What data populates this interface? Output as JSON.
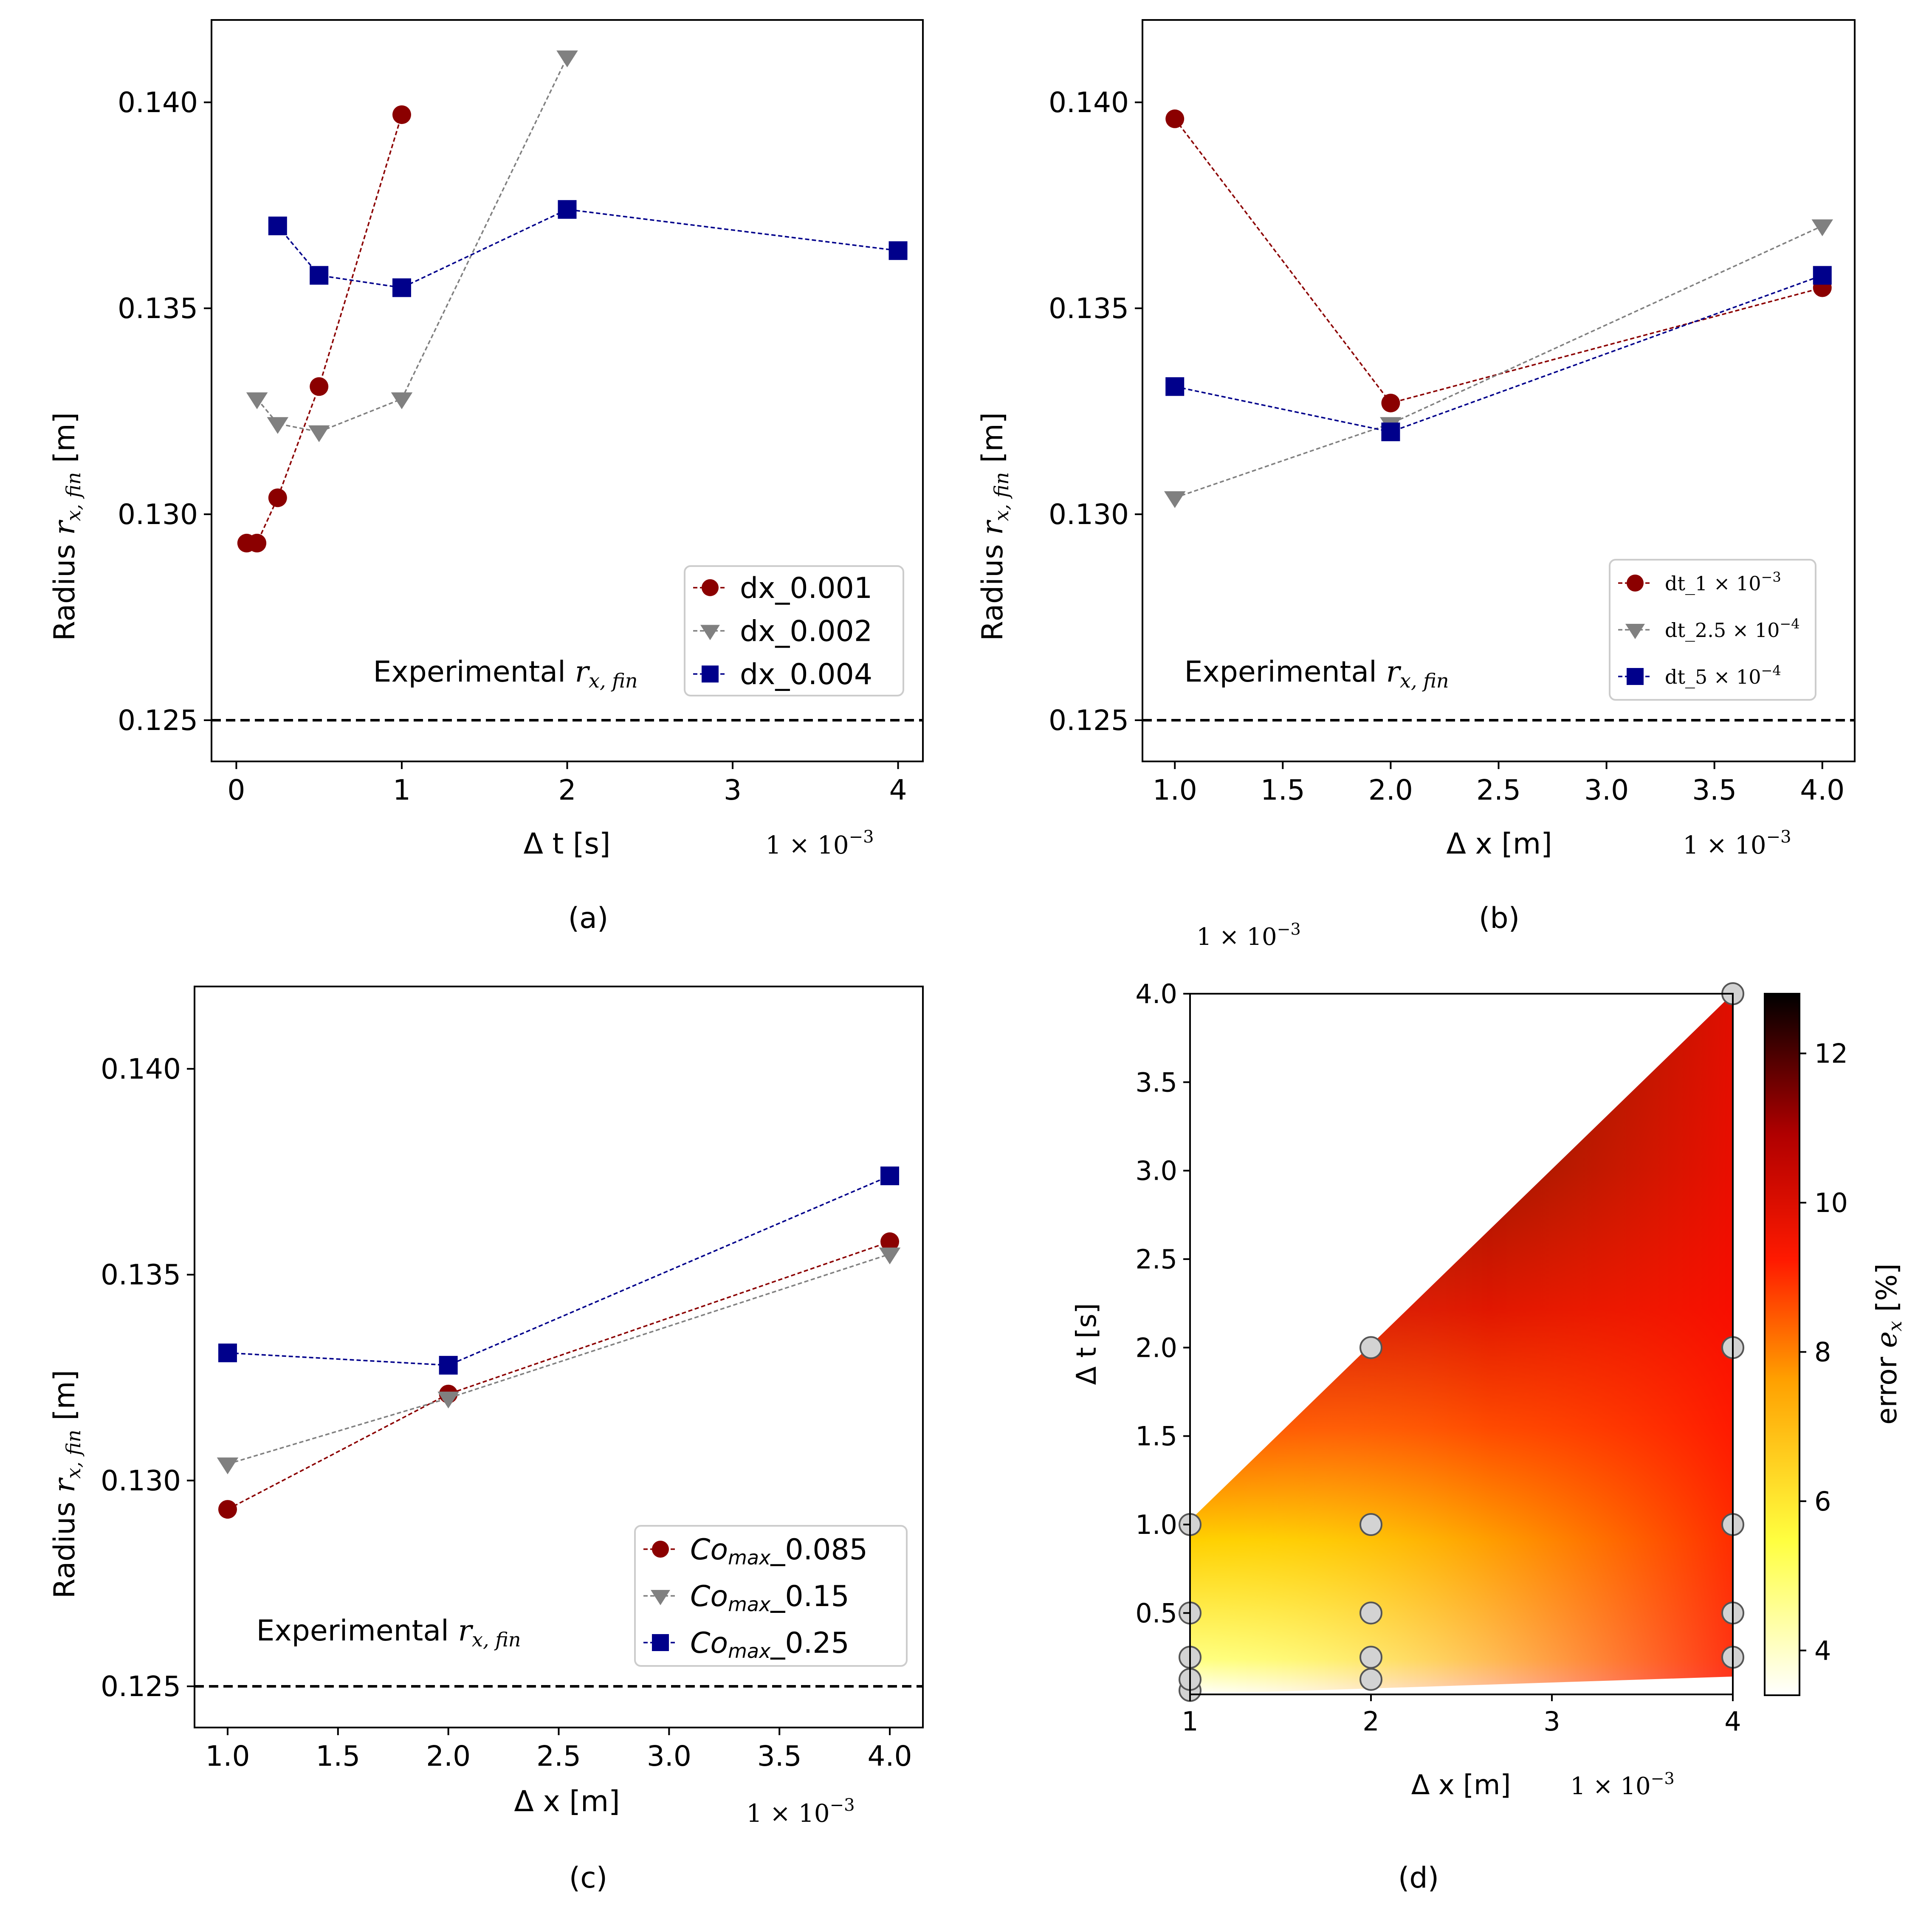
{
  "colors": {
    "dark_red": "#8b0000",
    "gray": "#808080",
    "navy": "#00008b",
    "black": "#000000"
  },
  "panels": {
    "a": {
      "caption": "(a)",
      "ylabel_main": "Radius ",
      "ylabel_r": "r",
      "ylabel_sub": "x, fin",
      "ylabel_unit": " [m]",
      "xlabel": "Δ t [s]",
      "x_exponent": "1 × 10",
      "x_exponent_power": "−3",
      "ref_label_main": "Experimental ",
      "ref_label_r": "r",
      "ref_label_sub": "x, fin"
    },
    "b": {
      "caption": "(b)",
      "ylabel_main": "Radius ",
      "ylabel_r": "r",
      "ylabel_sub": "x, fin",
      "ylabel_unit": " [m]",
      "xlabel": "Δ x [m]",
      "x_exponent": "1 × 10",
      "x_exponent_power": "−3",
      "ref_label_main": "Experimental ",
      "ref_label_r": "r",
      "ref_label_sub": "x, fin"
    },
    "c": {
      "caption": "(c)",
      "ylabel_main": "Radius ",
      "ylabel_r": "r",
      "ylabel_sub": "x, fin",
      "ylabel_unit": " [m]",
      "xlabel": "Δ x [m]",
      "x_exponent": "1 × 10",
      "x_exponent_power": "−3",
      "ref_label_main": "Experimental ",
      "ref_label_r": "r",
      "ref_label_sub": "x, fin"
    },
    "d": {
      "caption": "(d)",
      "xlabel": "Δ x [m]",
      "ylabel": "Δ t [s]",
      "x_exponent": "1 × 10",
      "x_exponent_power": "−3",
      "y_exponent": "1 × 10",
      "y_exponent_power": "−3",
      "colorbar_label_main": "error ",
      "colorbar_label_e": "e",
      "colorbar_label_sub": "x",
      "colorbar_label_unit": " [%]"
    }
  },
  "chart_data": [
    {
      "type": "line",
      "panel": "a",
      "x_multiplier": "1e-3",
      "xlim": [
        -0.15,
        4.15
      ],
      "ylim": [
        0.124,
        0.142
      ],
      "xticks": [
        0,
        1,
        2,
        3,
        4
      ],
      "xtick_labels": [
        "0",
        "1",
        "2",
        "3",
        "4"
      ],
      "yticks": [
        0.125,
        0.13,
        0.135,
        0.14
      ],
      "ytick_labels": [
        "0.125",
        "0.130",
        "0.135",
        "0.140"
      ],
      "reference_line": 0.125,
      "legend_position": "lower-right",
      "series": [
        {
          "name": "dx_0.001",
          "marker": "circle",
          "color": "#8b0000",
          "x": [
            0.0625,
            0.125,
            0.25,
            0.5,
            1.0
          ],
          "y": [
            0.1293,
            0.1293,
            0.1304,
            0.1331,
            0.1397
          ]
        },
        {
          "name": "dx_0.002",
          "marker": "triangle-down",
          "color": "#808080",
          "x": [
            0.125,
            0.25,
            0.5,
            1.0,
            2.0
          ],
          "y": [
            0.1328,
            0.1322,
            0.132,
            0.1328,
            0.1411
          ]
        },
        {
          "name": "dx_0.004",
          "marker": "square",
          "color": "#00008b",
          "x": [
            0.25,
            0.5,
            1.0,
            2.0,
            4.0
          ],
          "y": [
            0.137,
            0.1358,
            0.1355,
            0.1374,
            0.1364
          ]
        }
      ]
    },
    {
      "type": "line",
      "panel": "b",
      "x_multiplier": "1e-3",
      "xlim": [
        0.85,
        4.15
      ],
      "ylim": [
        0.124,
        0.142
      ],
      "xticks": [
        1.0,
        1.5,
        2.0,
        2.5,
        3.0,
        3.5,
        4.0
      ],
      "xtick_labels": [
        "1.0",
        "1.5",
        "2.0",
        "2.5",
        "3.0",
        "3.5",
        "4.0"
      ],
      "yticks": [
        0.125,
        0.13,
        0.135,
        0.14
      ],
      "ytick_labels": [
        "0.125",
        "0.130",
        "0.135",
        "0.140"
      ],
      "reference_line": 0.125,
      "legend_position": "lower-right",
      "series": [
        {
          "name": "dt_1 × 10",
          "name_power": "−3",
          "marker": "circle",
          "color": "#8b0000",
          "x": [
            1.0,
            2.0,
            4.0
          ],
          "y": [
            0.1396,
            0.1327,
            0.1355
          ]
        },
        {
          "name": "dt_2.5 × 10",
          "name_power": "−4",
          "marker": "triangle-down",
          "color": "#808080",
          "x": [
            1.0,
            2.0,
            4.0
          ],
          "y": [
            0.1304,
            0.1322,
            0.137
          ]
        },
        {
          "name": "dt_5 × 10",
          "name_power": "−4",
          "marker": "square",
          "color": "#00008b",
          "x": [
            1.0,
            2.0,
            4.0
          ],
          "y": [
            0.1331,
            0.132,
            0.1358
          ]
        }
      ]
    },
    {
      "type": "line",
      "panel": "c",
      "x_multiplier": "1e-3",
      "xlim": [
        0.85,
        4.15
      ],
      "ylim": [
        0.124,
        0.142
      ],
      "xticks": [
        1.0,
        1.5,
        2.0,
        2.5,
        3.0,
        3.5,
        4.0
      ],
      "xtick_labels": [
        "1.0",
        "1.5",
        "2.0",
        "2.5",
        "3.0",
        "3.5",
        "4.0"
      ],
      "yticks": [
        0.125,
        0.13,
        0.135,
        0.14
      ],
      "ytick_labels": [
        "0.125",
        "0.130",
        "0.135",
        "0.140"
      ],
      "reference_line": 0.125,
      "legend_position": "lower-right",
      "series": [
        {
          "name": "0.085",
          "name_prefix": "Co",
          "name_sub": "max",
          "marker": "circle",
          "color": "#8b0000",
          "x": [
            1.0,
            2.0,
            4.0
          ],
          "y": [
            0.1293,
            0.1321,
            0.1358
          ]
        },
        {
          "name": "0.15",
          "name_prefix": "Co",
          "name_sub": "max",
          "marker": "triangle-down",
          "color": "#808080",
          "x": [
            1.0,
            2.0,
            4.0
          ],
          "y": [
            0.1304,
            0.132,
            0.1355
          ]
        },
        {
          "name": "0.25",
          "name_prefix": "Co",
          "name_sub": "max",
          "marker": "square",
          "color": "#00008b",
          "x": [
            1.0,
            2.0,
            4.0
          ],
          "y": [
            0.1331,
            0.1328,
            0.1374
          ]
        }
      ]
    },
    {
      "type": "heatmap",
      "panel": "d",
      "x_multiplier": "1e-3",
      "y_multiplier": "1e-3",
      "xlim": [
        1.0,
        4.0
      ],
      "ylim": [
        0.04,
        4.0
      ],
      "xticks": [
        1,
        2,
        3,
        4
      ],
      "xtick_labels": [
        "1",
        "2",
        "3",
        "4"
      ],
      "yticks": [
        0.5,
        1.0,
        1.5,
        2.0,
        2.5,
        3.0,
        3.5,
        4.0
      ],
      "ytick_labels": [
        "0.5",
        "1.0",
        "1.5",
        "2.0",
        "2.5",
        "3.0",
        "3.5",
        "4.0"
      ],
      "colormap": "hot_r",
      "colorbar_range": [
        3.4,
        12.8
      ],
      "colorbar_ticks": [
        4,
        6,
        8,
        10,
        12
      ],
      "colorbar_tick_labels": [
        "4",
        "6",
        "8",
        "10",
        "12"
      ],
      "sample_points": {
        "x": [
          1,
          1,
          1,
          1,
          1,
          2,
          2,
          2,
          2,
          2,
          4,
          4,
          4,
          4,
          4
        ],
        "y": [
          0.0625,
          0.125,
          0.25,
          0.5,
          1.0,
          0.125,
          0.25,
          0.5,
          1.0,
          2.0,
          0.25,
          0.5,
          1.0,
          2.0,
          4.0
        ]
      }
    }
  ]
}
